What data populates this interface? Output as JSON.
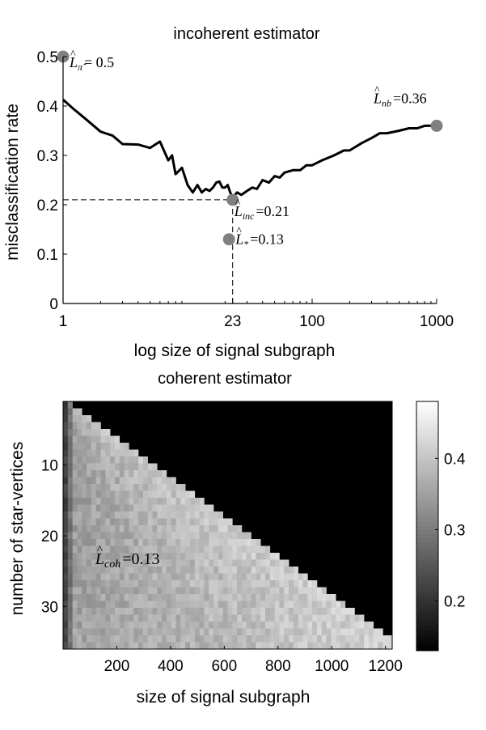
{
  "chart_data": [
    {
      "type": "line",
      "title": "incoherent estimator",
      "xlabel": "log size of signal subgraph",
      "ylabel": "misclassification rate",
      "x_scale": "log",
      "xlim": [
        1,
        1000
      ],
      "ylim": [
        0,
        0.5
      ],
      "x_ticks": [
        {
          "value": 1,
          "label": "1"
        },
        {
          "value": 23,
          "label": "23"
        },
        {
          "value": 100,
          "label": "100"
        },
        {
          "value": 1000,
          "label": "1000"
        }
      ],
      "y_ticks": [
        {
          "value": 0,
          "label": "0"
        },
        {
          "value": 0.1,
          "label": "0.1"
        },
        {
          "value": 0.2,
          "label": "0.2"
        },
        {
          "value": 0.3,
          "label": "0.3"
        },
        {
          "value": 0.4,
          "label": "0.4"
        },
        {
          "value": 0.5,
          "label": "0.5"
        }
      ],
      "series": [
        {
          "x": [
            1,
            1.2,
            1.5,
            2,
            2.5,
            3,
            4,
            5,
            6,
            7,
            7.5,
            8,
            9,
            10,
            11,
            12,
            13,
            14,
            15,
            16,
            17,
            18,
            19,
            20,
            21,
            22,
            23,
            25,
            27,
            30,
            33,
            36,
            40,
            45,
            50,
            55,
            60,
            70,
            80,
            90,
            100,
            120,
            150,
            180,
            200,
            250,
            300,
            350,
            400,
            500,
            600,
            700,
            800,
            900,
            1000
          ],
          "y": [
            0.413,
            0.395,
            0.375,
            0.348,
            0.34,
            0.323,
            0.322,
            0.315,
            0.328,
            0.29,
            0.3,
            0.262,
            0.275,
            0.24,
            0.225,
            0.24,
            0.225,
            0.232,
            0.228,
            0.235,
            0.245,
            0.247,
            0.235,
            0.235,
            0.24,
            0.225,
            0.215,
            0.225,
            0.22,
            0.228,
            0.235,
            0.232,
            0.25,
            0.245,
            0.258,
            0.255,
            0.265,
            0.27,
            0.27,
            0.28,
            0.28,
            0.29,
            0.3,
            0.31,
            0.31,
            0.325,
            0.335,
            0.345,
            0.345,
            0.35,
            0.355,
            0.355,
            0.36,
            0.36,
            0.36
          ]
        }
      ],
      "markers": [
        {
          "x": 1,
          "y": 0.5,
          "label_main": "L",
          "label_sub": "π̂",
          "label_value": "= 0.5"
        },
        {
          "x": 1000,
          "y": 0.36,
          "label_main": "L",
          "label_sub": "nb",
          "label_value": "=0.36"
        },
        {
          "x": 23,
          "y": 0.21,
          "label_main": "L",
          "label_sub": "inc",
          "label_value": "=0.21"
        },
        {
          "x": 21.5,
          "y": 0.13,
          "label_main": "L",
          "label_sub": "*",
          "label_value": "=0.13"
        }
      ],
      "reference_lines": [
        {
          "orientation": "horizontal",
          "y": 0.21,
          "from_x": 1,
          "to_x": 23,
          "style": "dashed"
        },
        {
          "orientation": "vertical",
          "x": 23,
          "from_y": 0,
          "to_y": 0.21,
          "style": "dashed"
        }
      ]
    },
    {
      "type": "heatmap",
      "title": "coherent estimator",
      "xlabel": "size of signal subgraph",
      "ylabel": "number of star-vertices",
      "xlim": [
        0,
        1225
      ],
      "ylim": [
        1,
        36
      ],
      "x_ticks": [
        200,
        400,
        600,
        800,
        1000,
        1200
      ],
      "y_ticks": [
        10,
        20,
        30
      ],
      "colorbar": {
        "min": 0.13,
        "max": 0.48,
        "ticks": [
          0.2,
          0.3,
          0.4
        ],
        "colormap": "gray"
      },
      "valid_region": "size of signal subgraph <= 35 × number of star-vertices; black outside",
      "annotation": {
        "label_main": "L",
        "label_sub": "coh",
        "label_value": "=0.13",
        "x": 120,
        "y": 24
      }
    }
  ]
}
